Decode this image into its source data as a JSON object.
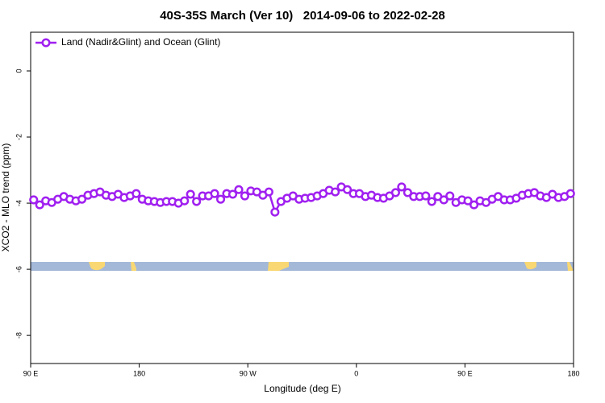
{
  "chart_data": {
    "type": "line",
    "title": "40S-35S March (Ver 10)   2014-09-06 to 2022-02-28",
    "xlabel": "Longitude (deg E)",
    "ylabel": "XCO2 - MLO trend (ppm)",
    "x": [
      92.5,
      97.5,
      102.5,
      107.5,
      112.5,
      117.5,
      122.5,
      127.5,
      132.5,
      137.5,
      142.5,
      147.5,
      152.5,
      157.5,
      162.5,
      167.5,
      172.5,
      177.5,
      182.5,
      187.5,
      192.5,
      197.5,
      202.5,
      207.5,
      212.5,
      217.5,
      222.5,
      227.5,
      232.5,
      237.5,
      242.5,
      247.5,
      252.5,
      257.5,
      262.5,
      267.5,
      272.5,
      277.5,
      282.5,
      287.5,
      292.5,
      297.5,
      302.5,
      307.5,
      312.5,
      317.5,
      322.5,
      327.5,
      332.5,
      337.5,
      342.5,
      347.5,
      352.5,
      357.5,
      362.5,
      367.5,
      372.5,
      377.5,
      382.5,
      387.5,
      392.5,
      397.5,
      402.5,
      407.5,
      412.5,
      417.5,
      422.5,
      427.5,
      432.5,
      437.5,
      442.5,
      447.5,
      452.5,
      457.5,
      462.5,
      467.5,
      472.5,
      477.5,
      482.5,
      487.5,
      492.5,
      497.5,
      502.5,
      507.5,
      512.5,
      517.5,
      522.5,
      527.5,
      532.5,
      537.5
    ],
    "series": [
      {
        "name": "Land (Nadir&Glint) and Ocean (Glint)",
        "color": "#a020f0",
        "values": [
          -3.9,
          -4.05,
          -3.93,
          -3.98,
          -3.88,
          -3.8,
          -3.88,
          -3.93,
          -3.88,
          -3.76,
          -3.71,
          -3.66,
          -3.76,
          -3.8,
          -3.73,
          -3.83,
          -3.78,
          -3.71,
          -3.88,
          -3.93,
          -3.95,
          -3.98,
          -3.95,
          -3.95,
          -4.0,
          -3.93,
          -3.73,
          -3.95,
          -3.78,
          -3.78,
          -3.71,
          -3.88,
          -3.71,
          -3.73,
          -3.59,
          -3.78,
          -3.63,
          -3.66,
          -3.76,
          -3.66,
          -4.27,
          -3.95,
          -3.85,
          -3.78,
          -3.88,
          -3.85,
          -3.83,
          -3.78,
          -3.71,
          -3.61,
          -3.66,
          -3.51,
          -3.59,
          -3.71,
          -3.71,
          -3.8,
          -3.76,
          -3.83,
          -3.85,
          -3.78,
          -3.68,
          -3.51,
          -3.68,
          -3.8,
          -3.8,
          -3.78,
          -3.95,
          -3.8,
          -3.9,
          -3.78,
          -3.98,
          -3.9,
          -3.93,
          -4.05,
          -3.93,
          -3.98,
          -3.88,
          -3.8,
          -3.9,
          -3.9,
          -3.85,
          -3.76,
          -3.71,
          -3.68,
          -3.78,
          -3.83,
          -3.73,
          -3.83,
          -3.8,
          -3.71
        ]
      }
    ],
    "xlim": [
      90,
      540
    ],
    "xticks": [
      {
        "value": 90,
        "label": "90 E"
      },
      180,
      {
        "value": 270,
        "label": "90 W"
      },
      {
        "value": 360,
        "label": "0"
      },
      {
        "value": 450,
        "label": "90 E"
      },
      {
        "value": 540,
        "label": "180"
      }
    ],
    "ylim": [
      -8.85,
      1.17
    ],
    "yticks": [
      0,
      -2,
      -4,
      -6,
      -8
    ],
    "legend": "top-left"
  }
}
